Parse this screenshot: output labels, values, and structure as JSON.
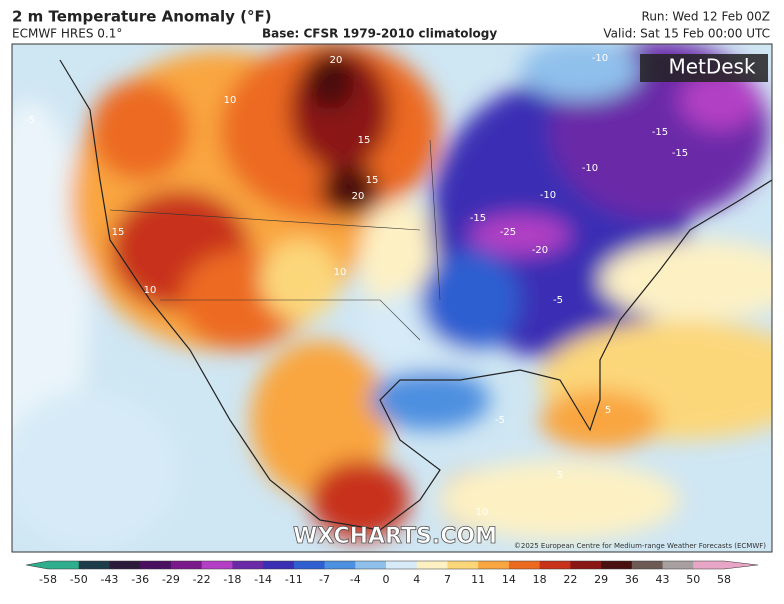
{
  "header": {
    "title": "2 m Temperature Anomaly (°F)",
    "model": "ECMWF HRES 0.1°",
    "base": "Base: CFSR 1979-2010 climatology",
    "run": "Run: Wed 12 Feb 00Z",
    "valid": "Valid: Sat 15 Feb 00:00 UTC"
  },
  "map": {
    "logo": "MetDesk",
    "watermark": "WXCHARTS.COM",
    "credit": "©2025 European Centre for Medium-range Weather Forecasts (ECMWF)",
    "contour_labels": [
      20,
      15,
      20,
      15,
      10,
      10,
      15,
      10,
      -15,
      -25,
      -20,
      -10,
      -10,
      -15,
      -15,
      -10,
      -5,
      -5,
      5,
      5,
      10,
      -5
    ]
  },
  "colorbar": {
    "ticks": [
      -58,
      -50,
      -43,
      -36,
      -29,
      -22,
      -18,
      -14,
      -11,
      -7,
      -4,
      0,
      4,
      7,
      11,
      14,
      18,
      22,
      29,
      36,
      43,
      50,
      58
    ],
    "colors": [
      "#2fae8e",
      "#1e3d4a",
      "#2c1a3a",
      "#4a1060",
      "#7a1a8a",
      "#b23fc4",
      "#6a2aa8",
      "#3a2fb4",
      "#2f5fd0",
      "#4d8fe0",
      "#8fc0ec",
      "#d6ebf7",
      "#fdf1c4",
      "#fcd77a",
      "#f9a640",
      "#ec6a20",
      "#c8321a",
      "#8b1616",
      "#4a1010",
      "#6d5a55",
      "#a8a0a0",
      "#e8a6c6"
    ]
  }
}
